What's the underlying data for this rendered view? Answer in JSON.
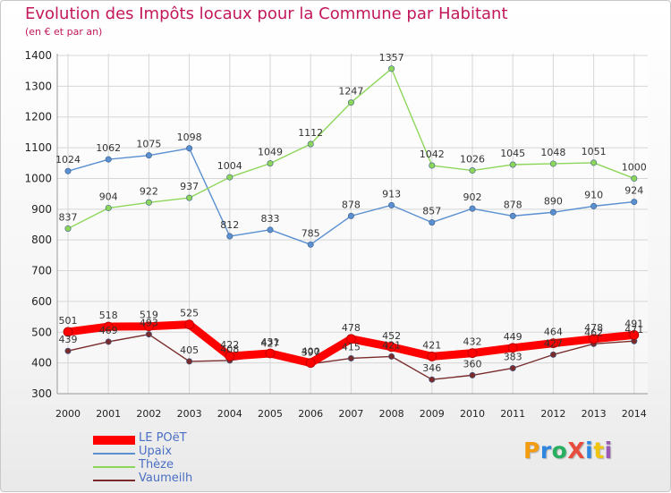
{
  "chart_data": {
    "type": "line",
    "title": "Evolution des Impôts locaux pour la Commune par Habitant",
    "subtitle": "(en € et par an)",
    "xlabel": "",
    "ylabel": "",
    "x": [
      "2000",
      "2001",
      "2002",
      "2003",
      "2004",
      "2005",
      "2006",
      "2007",
      "2008",
      "2009",
      "2010",
      "2011",
      "2012",
      "2013",
      "2014"
    ],
    "ylim": [
      300,
      1400
    ],
    "yticks": [
      300,
      400,
      500,
      600,
      700,
      800,
      900,
      1000,
      1100,
      1200,
      1300,
      1400
    ],
    "grid": true,
    "legend_position": "bottom-left",
    "series": [
      {
        "name": "LE POëT",
        "color": "#ff0000",
        "style": "thick",
        "values": [
          501,
          518,
          519,
          525,
          422,
          431,
          400,
          478,
          452,
          421,
          432,
          449,
          464,
          478,
          491
        ]
      },
      {
        "name": "Upaix",
        "color": "#5a8fd0",
        "style": "thin",
        "values": [
          1024,
          1062,
          1075,
          1098,
          812,
          833,
          785,
          878,
          913,
          857,
          902,
          878,
          890,
          910,
          924
        ]
      },
      {
        "name": "Thèze",
        "color": "#8ed65a",
        "style": "thin",
        "values": [
          837,
          904,
          922,
          937,
          1004,
          1049,
          1112,
          1247,
          1357,
          1042,
          1026,
          1045,
          1048,
          1051,
          1000
        ]
      },
      {
        "name": "Vaumeilh",
        "color": "#7a2c2c",
        "style": "thin",
        "values": [
          439,
          469,
          493,
          405,
          408,
          427,
          397,
          415,
          421,
          346,
          360,
          383,
          427,
          462,
          471
        ]
      }
    ]
  },
  "logo": {
    "text": "ProXiti",
    "letters": [
      {
        "char": "P",
        "color": "#f39c12"
      },
      {
        "char": "r",
        "color": "#2e86de"
      },
      {
        "char": "o",
        "color": "#27ae60"
      },
      {
        "char": "X",
        "color": "#e74c3c"
      },
      {
        "char": "i",
        "color": "#2e86de"
      },
      {
        "char": "t",
        "color": "#f1c40f"
      },
      {
        "char": "i",
        "color": "#9b59b6"
      }
    ]
  }
}
